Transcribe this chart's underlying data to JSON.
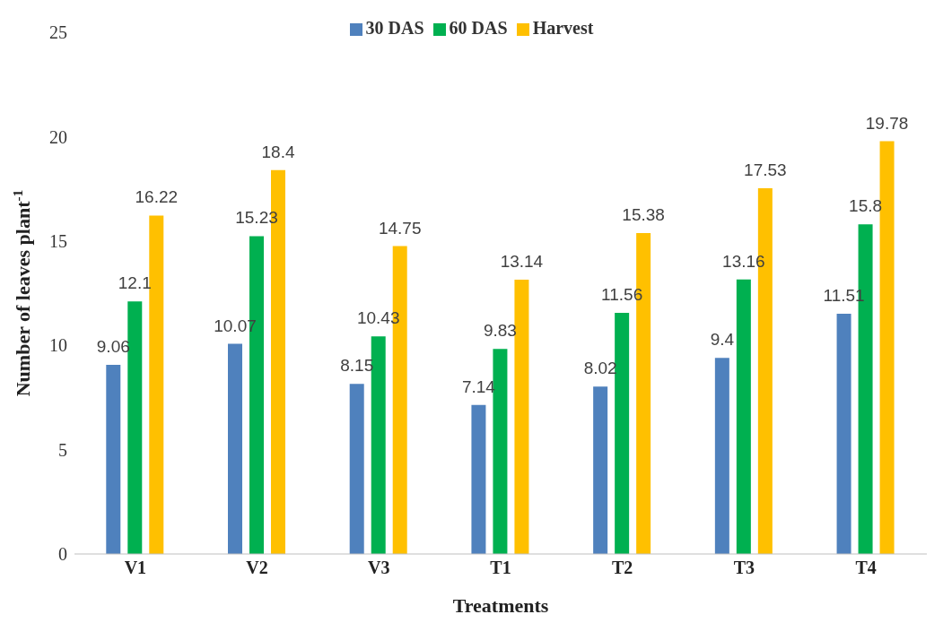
{
  "chart_data": {
    "type": "bar",
    "xlabel": "Treatments",
    "ylabel": "Number of leaves plant$^{-1}$",
    "categories": [
      "V1",
      "V2",
      "V3",
      "T1",
      "T2",
      "T3",
      "T4"
    ],
    "series": [
      {
        "name": "30 DAS",
        "color": "#4f81bd",
        "values": [
          9.06,
          10.07,
          8.15,
          7.14,
          8.02,
          9.4,
          11.51
        ]
      },
      {
        "name": "60 DAS",
        "color": "#00b050",
        "values": [
          12.1,
          15.23,
          10.43,
          9.83,
          11.56,
          13.16,
          15.8
        ]
      },
      {
        "name": "Harvest",
        "color": "#ffc000",
        "values": [
          16.22,
          18.4,
          14.75,
          13.14,
          15.38,
          17.53,
          19.78
        ]
      }
    ],
    "ylim": [
      0,
      25
    ],
    "yticks": [
      0,
      5,
      10,
      15,
      20,
      25
    ],
    "grid": false,
    "legend": "top",
    "data_labels": true
  }
}
